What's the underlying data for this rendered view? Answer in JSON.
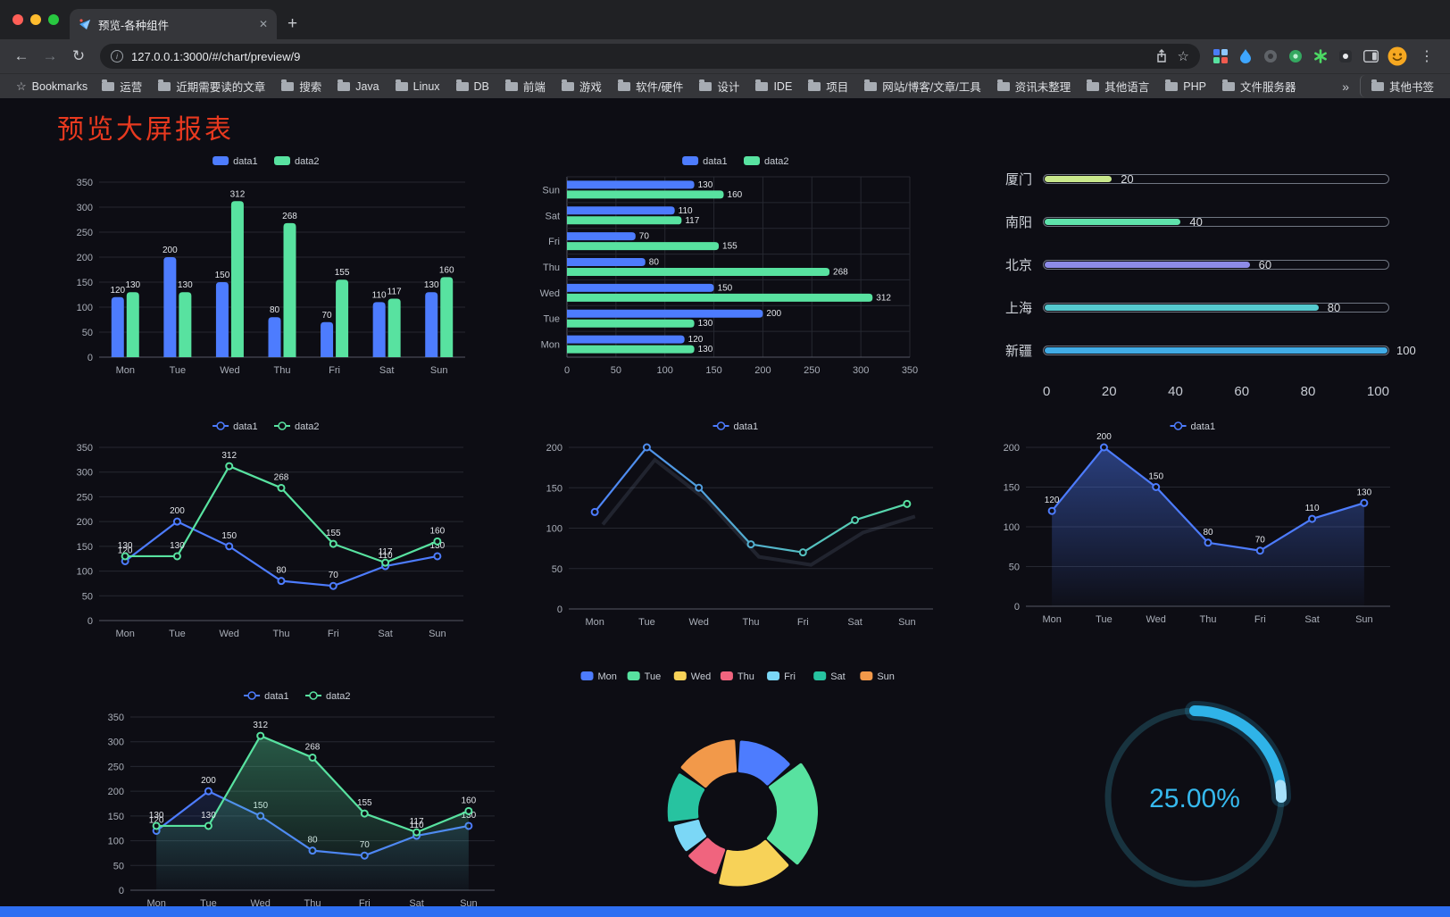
{
  "browser": {
    "tab": {
      "title": "预览-各种组件",
      "close_icon": "✕",
      "new_tab_icon": "+"
    },
    "toolbar": {
      "back_icon": "←",
      "forward_icon": "→",
      "reload_icon": "↻",
      "info_icon": "i",
      "star_icon": "☆",
      "menu_icon": "⋮"
    },
    "address": {
      "url": "127.0.0.1:3000/#/chart/preview/9"
    },
    "bookmarks_bar": {
      "star_icon": "☆",
      "bookmarks_label": "Bookmarks",
      "items": [
        "运营",
        "近期需要读的文章",
        "搜索",
        "Java",
        "Linux",
        "DB",
        "前端",
        "游戏",
        "软件/硬件",
        "设计",
        "IDE",
        "项目",
        "网站/博客/文章/工具",
        "资讯未整理",
        "其他语言",
        "PHP",
        "文件服务器"
      ],
      "overflow": "»",
      "other_bookmarks": "其他书签"
    }
  },
  "page": {
    "title": "预览大屏报表"
  },
  "chart_data": [
    {
      "id": "grouped-bar",
      "type": "bar",
      "categories": [
        "Mon",
        "Tue",
        "Wed",
        "Thu",
        "Fri",
        "Sat",
        "Sun"
      ],
      "series": [
        {
          "name": "data1",
          "color": "#4D7CFE",
          "values": [
            120,
            200,
            150,
            80,
            70,
            110,
            130
          ]
        },
        {
          "name": "data2",
          "color": "#58E2A0",
          "values": [
            130,
            130,
            312,
            268,
            155,
            117,
            160
          ]
        }
      ],
      "ylim": [
        0,
        350
      ],
      "ytick_step": 50,
      "show_labels": true,
      "legend_position": "top",
      "grid": true
    },
    {
      "id": "horizontal-bar",
      "type": "hbar",
      "categories": [
        "Mon",
        "Tue",
        "Wed",
        "Thu",
        "Fri",
        "Sat",
        "Sun"
      ],
      "series": [
        {
          "name": "data1",
          "color": "#4D7CFE",
          "values": [
            120,
            200,
            150,
            80,
            70,
            110,
            130
          ]
        },
        {
          "name": "data2",
          "color": "#58E2A0",
          "values": [
            130,
            130,
            312,
            268,
            155,
            117,
            160
          ]
        }
      ],
      "xlim": [
        0,
        350
      ],
      "xtick_step": 50,
      "show_labels": true,
      "legend_position": "top",
      "grid": true
    },
    {
      "id": "city-progress",
      "type": "progress",
      "items": [
        {
          "label": "厦门",
          "value": 20,
          "color": "#C9E88C"
        },
        {
          "label": "南阳",
          "value": 40,
          "color": "#5FE3AC"
        },
        {
          "label": "北京",
          "value": 60,
          "color": "#8D8BE8"
        },
        {
          "label": "上海",
          "value": 80,
          "color": "#55C9CF"
        },
        {
          "label": "新疆",
          "value": 100,
          "color": "#41ACE6"
        }
      ],
      "xlim": [
        0,
        100
      ],
      "xticks": [
        0,
        20,
        40,
        60,
        80,
        100
      ]
    },
    {
      "id": "dual-line",
      "type": "line",
      "categories": [
        "Mon",
        "Tue",
        "Wed",
        "Thu",
        "Fri",
        "Sat",
        "Sun"
      ],
      "series": [
        {
          "name": "data1",
          "color": "#4D7CFE",
          "values": [
            120,
            200,
            150,
            80,
            70,
            110,
            130
          ]
        },
        {
          "name": "data2",
          "color": "#58E2A0",
          "values": [
            130,
            130,
            312,
            268,
            155,
            117,
            160
          ]
        }
      ],
      "ylim": [
        0,
        350
      ],
      "ytick_step": 50,
      "show_labels": true,
      "legend_position": "top",
      "grid": true
    },
    {
      "id": "gradient-line",
      "type": "line",
      "categories": [
        "Mon",
        "Tue",
        "Wed",
        "Thu",
        "Fri",
        "Sat",
        "Sun"
      ],
      "series": [
        {
          "name": "data1",
          "gradient": [
            "#4D7CFE",
            "#58E2A0"
          ],
          "shadow": true,
          "values": [
            120,
            200,
            150,
            80,
            70,
            110,
            130
          ]
        }
      ],
      "ylim": [
        0,
        200
      ],
      "ytick_step": 50,
      "show_labels": false,
      "legend_position": "top",
      "grid": true
    },
    {
      "id": "area-line",
      "type": "line",
      "categories": [
        "Mon",
        "Tue",
        "Wed",
        "Thu",
        "Fri",
        "Sat",
        "Sun"
      ],
      "series": [
        {
          "name": "data1",
          "color": "#4D7CFE",
          "area": true,
          "area_opacity": 0.45,
          "values": [
            120,
            200,
            150,
            80,
            70,
            110,
            130
          ]
        }
      ],
      "ylim": [
        0,
        200
      ],
      "ytick_step": 50,
      "show_labels": true,
      "legend_position": "top",
      "grid": true
    },
    {
      "id": "dual-line-area",
      "type": "line",
      "categories": [
        "Mon",
        "Tue",
        "Wed",
        "Thu",
        "Fri",
        "Sat",
        "Sun"
      ],
      "series": [
        {
          "name": "data1",
          "color": "#4D7CFE",
          "area": true,
          "area_opacity": 0.25,
          "values": [
            120,
            200,
            150,
            80,
            70,
            110,
            130
          ]
        },
        {
          "name": "data2",
          "color": "#58E2A0",
          "area": true,
          "area_opacity": 0.4,
          "values": [
            130,
            130,
            312,
            268,
            155,
            117,
            160
          ]
        }
      ],
      "ylim": [
        0,
        350
      ],
      "ytick_step": 50,
      "show_labels": true,
      "legend_position": "top",
      "grid": true
    },
    {
      "id": "weekday-donut",
      "type": "pie",
      "categories": [
        "Mon",
        "Tue",
        "Wed",
        "Thu",
        "Fri",
        "Sat",
        "Sun"
      ],
      "values": [
        120,
        200,
        150,
        80,
        70,
        110,
        130
      ],
      "colors": [
        "#4D7CFE",
        "#58E2A0",
        "#F7D258",
        "#F0647E",
        "#7BD7F6",
        "#27C3A0",
        "#F2994A"
      ],
      "legend_position": "top"
    },
    {
      "id": "percent-gauge",
      "type": "gauge",
      "value": 25,
      "text": "25.00%",
      "color": "#2FB3E8",
      "ring_color": "#18333F"
    }
  ]
}
